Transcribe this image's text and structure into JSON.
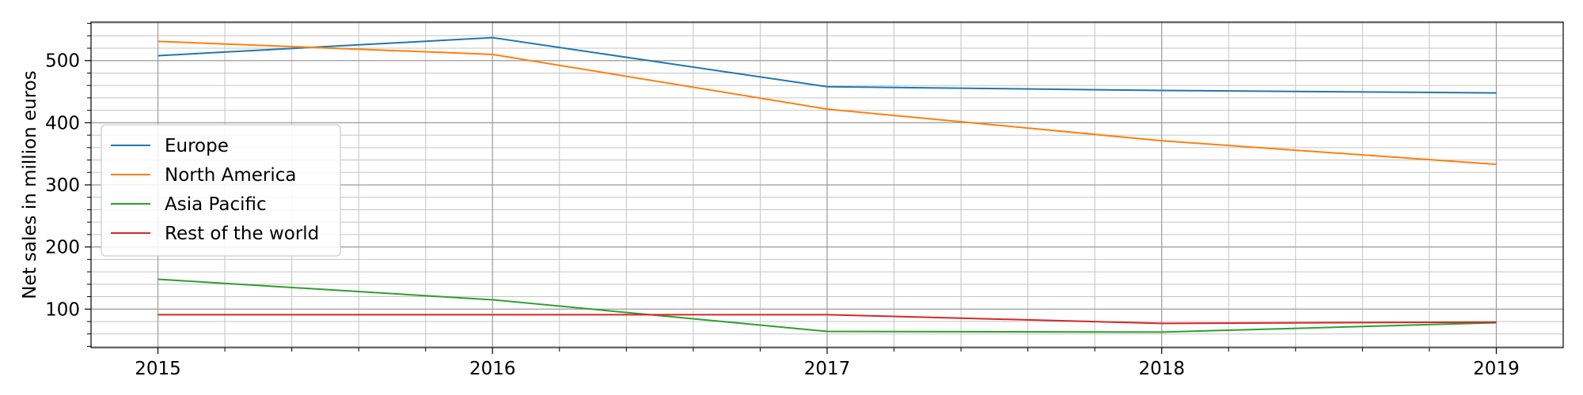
{
  "chart_data": {
    "type": "line",
    "title": "",
    "xlabel": "",
    "ylabel": "Net sales in million euros",
    "x": [
      2015,
      2016,
      2017,
      2018,
      2019
    ],
    "x_tick_labels": [
      "2015",
      "2016",
      "2017",
      "2018",
      "2019"
    ],
    "xlim": [
      2014.8,
      2019.2
    ],
    "ylim": [
      38,
      562
    ],
    "y_ticks": [
      100,
      200,
      300,
      400,
      500
    ],
    "y_tick_labels": [
      "100",
      "200",
      "300",
      "400",
      "500"
    ],
    "grid": "major and minor",
    "legend_position": "center-left",
    "series": [
      {
        "name": "Europe",
        "color": "#1f77b4",
        "values": [
          508,
          537,
          458,
          452,
          448
        ]
      },
      {
        "name": "North America",
        "color": "#ff7f0e",
        "values": [
          531,
          510,
          422,
          371,
          333
        ]
      },
      {
        "name": "Asia Pacific",
        "color": "#2ca02c",
        "values": [
          148,
          115,
          64,
          63,
          78
        ]
      },
      {
        "name": "Rest of the world",
        "color": "#d62728",
        "values": [
          91,
          91,
          91,
          77,
          79
        ]
      }
    ]
  }
}
